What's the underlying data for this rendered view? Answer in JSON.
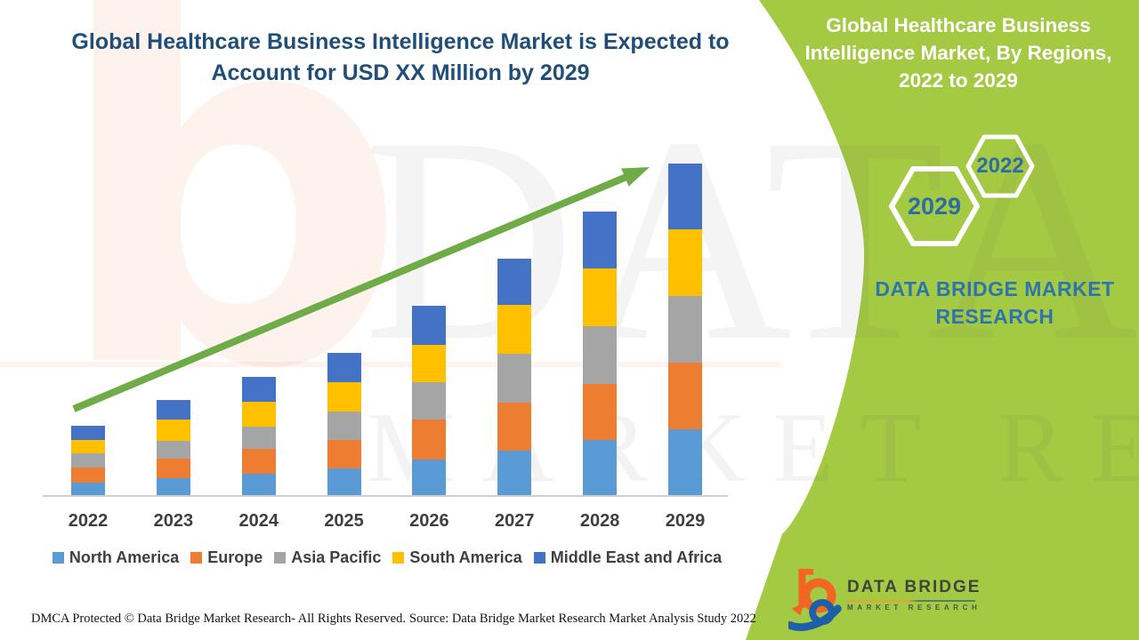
{
  "header": {
    "title_line1": "Global Healthcare Business Intelligence Market is Expected to",
    "title_line2": "Account for USD XX Million by 2029"
  },
  "side_panel": {
    "title_line1": "Global Healthcare Business",
    "title_line2": "Intelligence Market, By Regions,",
    "title_line3": "2022 to 2029",
    "hexagons": [
      {
        "label": "2029"
      },
      {
        "label": "2022"
      }
    ],
    "brand_line1": "DATA BRIDGE MARKET",
    "brand_line2": "RESEARCH"
  },
  "chart_data": {
    "type": "bar",
    "stacked": true,
    "title": "Global Healthcare Business Intelligence Market, By Regions, 2022 to 2029",
    "categories": [
      "2022",
      "2023",
      "2024",
      "2025",
      "2026",
      "2027",
      "2028",
      "2029"
    ],
    "series": [
      {
        "name": "North America",
        "color": "#5B9BD5",
        "values": [
          15,
          20,
          25,
          31,
          41,
          51,
          63,
          75
        ]
      },
      {
        "name": "Europe",
        "color": "#ED7D31",
        "values": [
          17,
          22,
          28,
          32,
          45,
          54,
          63,
          75
        ]
      },
      {
        "name": "Asia Pacific",
        "color": "#A5A5A5",
        "values": [
          16,
          20,
          25,
          32,
          42,
          55,
          65,
          75
        ]
      },
      {
        "name": "South America",
        "color": "#FFC000",
        "values": [
          15,
          24,
          28,
          33,
          42,
          55,
          65,
          75
        ]
      },
      {
        "name": "Middle East and Africa",
        "color": "#4472C4",
        "values": [
          16,
          22,
          28,
          33,
          44,
          52,
          64,
          74
        ]
      }
    ],
    "value_note": "No numeric axis shown; values are relative estimates (actual market size shown as USD XX Million)",
    "legend_position": "bottom",
    "grid": false,
    "annotations": [
      "upward trend arrow"
    ]
  },
  "footer": {
    "dmca": "DMCA Protected © Data Bridge Market Research- All Rights Reserved.",
    "source": "Source: Data Bridge Market Research Market Analysis Study 2022"
  },
  "logo": {
    "name": "DATA BRIDGE",
    "subtitle": "MARKET RESEARCH"
  },
  "watermarks": {
    "b_glyph": "b",
    "row1": "DATA BRIDGE",
    "row2": "MARKET RESEARCH"
  },
  "colors": {
    "panel_green": "#A4C943",
    "arrow_green": "#6FAC47",
    "title_blue": "#1F4E79",
    "brand_blue": "#2E75AD",
    "hexagon_text_blue": "#2E6DA3",
    "logo_orange": "#F26522",
    "logo_blue": "#1F5FA8"
  }
}
